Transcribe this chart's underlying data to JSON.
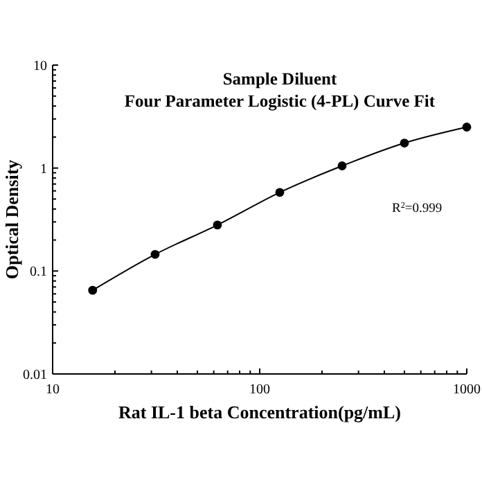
{
  "chart_data": {
    "type": "line",
    "title": "Sample Diluent",
    "subtitle": "Four Parameter Logistic (4-PL) Curve Fit",
    "xlabel": "Rat IL-1 beta Concentration(pg/mL)",
    "ylabel": "Optical Density",
    "log": "xy",
    "grid": false,
    "marker": "circle",
    "line_style": "solid",
    "x": [
      15.6,
      31.25,
      62.5,
      125,
      250,
      500,
      1000
    ],
    "series": [
      {
        "color": "#000000",
        "values": [
          0.065,
          0.145,
          0.28,
          0.58,
          1.05,
          1.75,
          2.5
        ]
      }
    ],
    "xlim": [
      10,
      1000
    ],
    "ylim": [
      0.01,
      10
    ],
    "xticks": [
      10,
      {
        "value": 20,
        "label": null
      },
      {
        "value": 30,
        "label": null
      },
      {
        "value": 40,
        "label": null
      },
      {
        "value": 50,
        "label": null
      },
      {
        "value": 60,
        "label": null
      },
      {
        "value": 70,
        "label": null
      },
      {
        "value": 80,
        "label": null
      },
      {
        "value": 90,
        "label": null
      },
      100,
      {
        "value": 200,
        "label": null
      },
      {
        "value": 300,
        "label": null
      },
      {
        "value": 400,
        "label": null
      },
      {
        "value": 500,
        "label": null
      },
      {
        "value": 600,
        "label": null
      },
      {
        "value": 700,
        "label": null
      },
      {
        "value": 800,
        "label": null
      },
      {
        "value": 900,
        "label": null
      },
      1000
    ],
    "yticks": [
      0.01,
      {
        "value": 0.02,
        "label": null
      },
      {
        "value": 0.03,
        "label": null
      },
      {
        "value": 0.04,
        "label": null
      },
      {
        "value": 0.05,
        "label": null
      },
      {
        "value": 0.06,
        "label": null
      },
      {
        "value": 0.07,
        "label": null
      },
      {
        "value": 0.08,
        "label": null
      },
      {
        "value": 0.09,
        "label": null
      },
      0.1,
      {
        "value": 0.2,
        "label": null
      },
      {
        "value": 0.3,
        "label": null
      },
      {
        "value": 0.4,
        "label": null
      },
      {
        "value": 0.5,
        "label": null
      },
      {
        "value": 0.6,
        "label": null
      },
      {
        "value": 0.7,
        "label": null
      },
      {
        "value": 0.8,
        "label": null
      },
      {
        "value": 0.9,
        "label": null
      },
      1,
      {
        "value": 2,
        "label": null
      },
      {
        "value": 3,
        "label": null
      },
      {
        "value": 4,
        "label": null
      },
      {
        "value": 5,
        "label": null
      },
      {
        "value": 6,
        "label": null
      },
      {
        "value": 7,
        "label": null
      },
      {
        "value": 8,
        "label": null
      },
      {
        "value": 9,
        "label": null
      },
      10
    ],
    "annotations": [
      "R$^{2}$=0.999"
    ]
  }
}
